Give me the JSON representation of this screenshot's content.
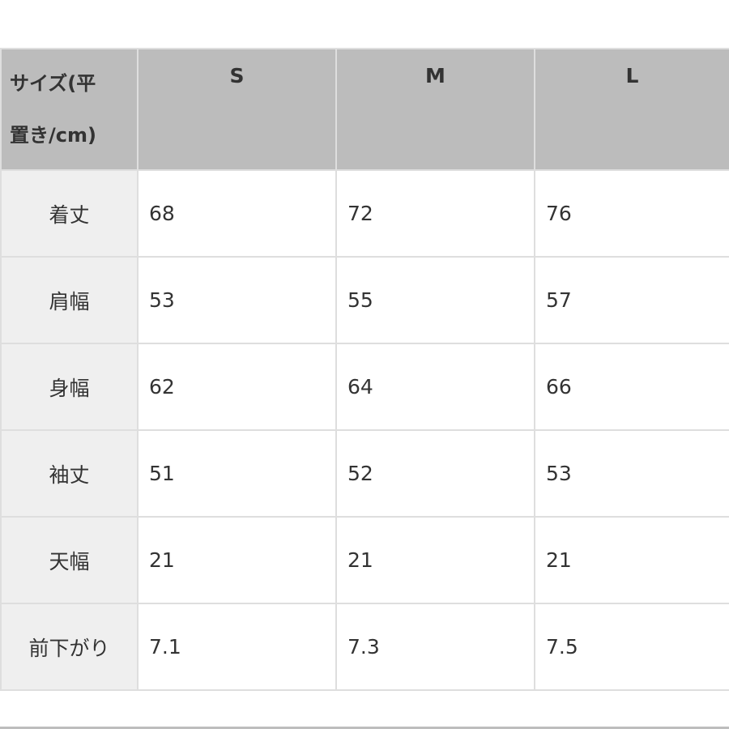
{
  "table": {
    "corner_header_line1": "サイズ(平",
    "corner_header_line2": "置き/cm)",
    "columns": [
      "S",
      "M",
      "L"
    ],
    "rows": [
      {
        "label": "着丈",
        "values": [
          "68",
          "72",
          "76"
        ]
      },
      {
        "label": "肩幅",
        "values": [
          "53",
          "55",
          "57"
        ]
      },
      {
        "label": "身幅",
        "values": [
          "62",
          "64",
          "66"
        ]
      },
      {
        "label": "袖丈",
        "values": [
          "51",
          "52",
          "53"
        ]
      },
      {
        "label": "天幅",
        "values": [
          "21",
          "21",
          "21"
        ]
      },
      {
        "label": "前下がり",
        "values": [
          "7.1",
          "7.3",
          "7.5"
        ]
      }
    ]
  },
  "colors": {
    "header_bg": "#bcbcbc",
    "label_bg": "#efefef",
    "border": "#dedede"
  }
}
